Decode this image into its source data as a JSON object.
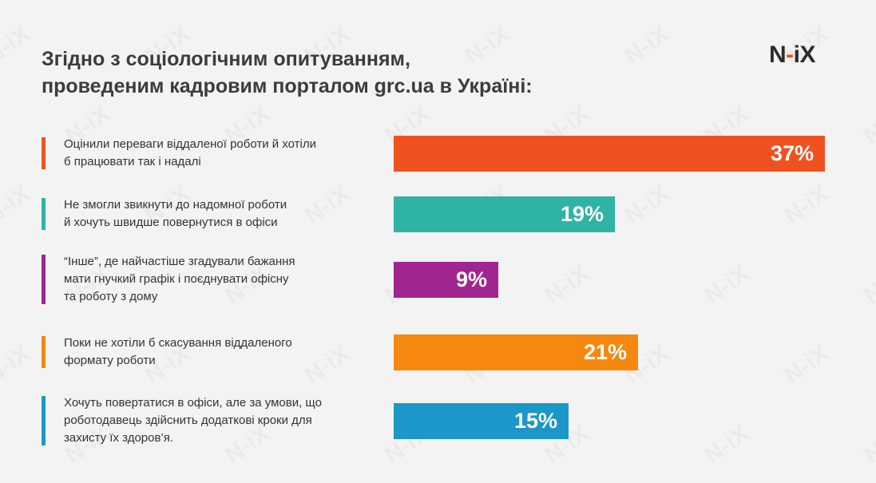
{
  "title": {
    "line1": "Згідно з соціологічним опитуванням,",
    "line2": "проведеним кадровим порталом grc.ua в Україні:"
  },
  "logo": {
    "n": "N",
    "dash": "-",
    "ix": "iX"
  },
  "watermark": "N-iX",
  "chart_data": {
    "type": "bar",
    "orientation": "horizontal",
    "categories": [
      "Оцінили переваги віддаленої роботи й хотіли\nб працювати так і надалі",
      "Не змогли звикнути до надомної роботи\nй хочуть швидше повернутися в офіси",
      "“Інше”, де найчастіше згадували бажання\nмати гнучкий графік і поєднувати офісну\nта роботу з дому",
      "Поки не хотіли б скасування віддаленого\nформату роботи",
      "Хочуть повертатися в офіси, але за умови, що\nроботодавець здійснить додаткові кроки для\nзахисту їх здоров’я."
    ],
    "values": [
      37,
      19,
      9,
      21,
      15
    ],
    "labels": [
      "37%",
      "19%",
      "9%",
      "21%",
      "15%"
    ],
    "colors": [
      "#f0521f",
      "#2fb3a4",
      "#a1258e",
      "#f6880f",
      "#1c97c9"
    ],
    "unit": "%",
    "grid": false
  }
}
